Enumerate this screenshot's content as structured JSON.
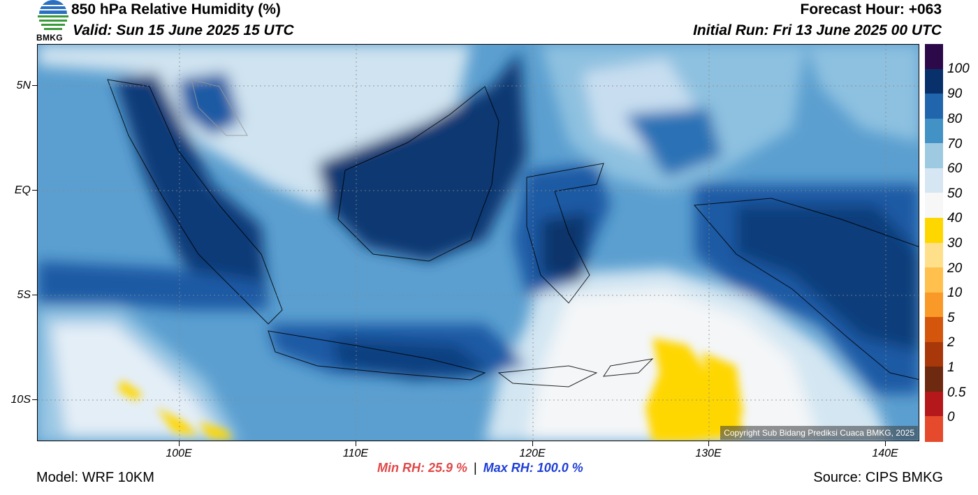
{
  "header": {
    "title": "850 hPa Relative Humidity (%)",
    "valid": "Valid: Sun 15 June 2025 15 UTC",
    "forecast_hour": "Forecast Hour: +063",
    "initial_run": "Initial Run: Fri 13 June 2025 00 UTC",
    "logo_text": "BMKG"
  },
  "map": {
    "lat_labels": [
      "5N",
      "EQ",
      "5S",
      "10S"
    ],
    "lon_labels": [
      "100E",
      "110E",
      "120E",
      "130E",
      "140E"
    ],
    "lat_range": [
      -12,
      7
    ],
    "lon_range": [
      92,
      142
    ],
    "copyright": "Copyright Sub Bidang Prediksi Cuaca BMKG, 2025"
  },
  "colorbar": {
    "labels": [
      "100",
      "90",
      "80",
      "70",
      "60",
      "50",
      "40",
      "30",
      "20",
      "10",
      "5",
      "2",
      "1",
      "0.5",
      "0"
    ],
    "colors": [
      "#2c0a4a",
      "#08306b",
      "#2166ac",
      "#4292c6",
      "#9ecae1",
      "#d6e6f2",
      "#f7f7f7",
      "#ffd700",
      "#ffe08a",
      "#ffc04d",
      "#f99a28",
      "#d4560c",
      "#a8380a",
      "#6e2a10",
      "#b5181b",
      "#e64a2c"
    ]
  },
  "footer": {
    "min_rh": "Min RH:  25.9 %",
    "separator": "|",
    "max_rh": "Max RH: 100.0 %",
    "model": "Model: WRF 10KM",
    "source": "Source: CIPS BMKG"
  }
}
